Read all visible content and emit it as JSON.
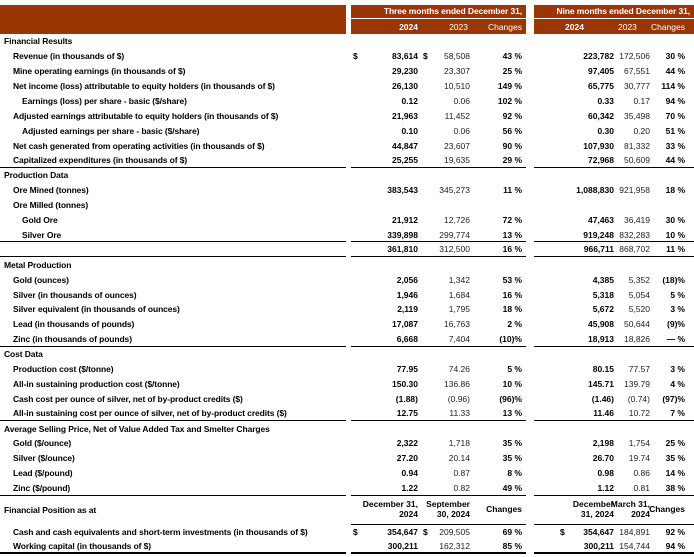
{
  "colors": {
    "header_bg": "#9A3603",
    "header_text": "#FFFFFF",
    "border": "#000000"
  },
  "header": {
    "three_months": {
      "title": "Three months ended December 31,",
      "cols": [
        "2024",
        "2023",
        "Changes"
      ]
    },
    "nine_months": {
      "title": "Nine months ended December 31,",
      "cols": [
        "2024",
        "2023",
        "Changes"
      ]
    }
  },
  "sections": [
    {
      "l": "Financial Results",
      "rows": [
        {
          "l": "Revenue (in thousands of $)",
          "i": 1,
          "d1": "$",
          "v1": "83,614",
          "d2": "$",
          "v2": "58,508",
          "v3": "43 %",
          "v4": "223,782",
          "v5": "172,506",
          "v6": "30 %"
        },
        {
          "l": "Mine operating earnings (in thousands of $)",
          "i": 1,
          "v1": "29,230",
          "v2": "23,307",
          "v3": "25 %",
          "v4": "97,405",
          "v5": "67,551",
          "v6": "44 %"
        },
        {
          "l": "Net income (loss) attributable to equity holders (in thousands of $)",
          "i": 1,
          "v1": "26,130",
          "v2": "10,510",
          "v3": "149 %",
          "v4": "65,775",
          "v5": "30,777",
          "v6": "114 %"
        },
        {
          "l": "Earnings (loss) per share - basic ($/share)",
          "i": 2,
          "v1": "0.12",
          "v2": "0.06",
          "v3": "102 %",
          "v4": "0.33",
          "v5": "0.17",
          "v6": "94 %"
        },
        {
          "l": "Adjusted earnings attributable to equity holders (in thousands of $)",
          "i": 1,
          "v1": "21,963",
          "v2": "11,452",
          "v3": "92 %",
          "v4": "60,342",
          "v5": "35,498",
          "v6": "70 %"
        },
        {
          "l": "Adjusted earnings per share - basic ($/share)",
          "i": 2,
          "v1": "0.10",
          "v2": "0.06",
          "v3": "56 %",
          "v4": "0.30",
          "v5": "0.20",
          "v6": "51 %"
        },
        {
          "l": "Net cash generated from operating activities (in thousands of $)",
          "i": 1,
          "v1": "44,847",
          "v2": "23,607",
          "v3": "90 %",
          "v4": "107,930",
          "v5": "81,332",
          "v6": "33 %"
        },
        {
          "l": "Capitalized expenditures (in thousands of $)",
          "i": 1,
          "v1": "25,255",
          "v2": "19,635",
          "v3": "29 %",
          "v4": "72,968",
          "v5": "50,609",
          "v6": "44 %",
          "b": true
        }
      ]
    },
    {
      "l": "Production Data",
      "rows": [
        {
          "l": "Ore Mined (tonnes)",
          "i": 1,
          "v1": "383,543",
          "v2": "345,273",
          "v3": "11 %",
          "v4": "1,088,830",
          "v5": "921,958",
          "v6": "18 %"
        },
        {
          "l": "Ore Milled (tonnes)",
          "i": 1
        },
        {
          "l": "Gold Ore",
          "i": 2,
          "v1": "21,912",
          "v2": "12,726",
          "v3": "72 %",
          "v4": "47,463",
          "v5": "36,419",
          "v6": "30 %"
        },
        {
          "l": "Silver Ore",
          "i": 2,
          "v1": "339,898",
          "v2": "299,774",
          "v3": "13 %",
          "v4": "919,248",
          "v5": "832,283",
          "v6": "10 %",
          "b": true
        },
        {
          "i": 1,
          "v1": "361,810",
          "v2": "312,500",
          "v3": "16 %",
          "v4": "966,711",
          "v5": "868,702",
          "v6": "11 %",
          "b": true
        }
      ]
    },
    {
      "l": "Metal Production",
      "rows": [
        {
          "l": "Gold (ounces)",
          "i": 1,
          "v1": "2,056",
          "v2": "1,342",
          "v3": "53 %",
          "v4": "4,385",
          "v5": "5,352",
          "v6": "(18)%"
        },
        {
          "l": "Silver (in thousands of ounces)",
          "i": 1,
          "v1": "1,946",
          "v2": "1,684",
          "v3": "16 %",
          "v4": "5,318",
          "v5": "5,054",
          "v6": "5 %"
        },
        {
          "l": "Silver equivalent (in thousands of ounces)",
          "i": 1,
          "v1": "2,119",
          "v2": "1,795",
          "v3": "18 %",
          "v4": "5,672",
          "v5": "5,520",
          "v6": "3 %"
        },
        {
          "l": "Lead (in thousands of pounds)",
          "i": 1,
          "v1": "17,087",
          "v2": "16,763",
          "v3": "2 %",
          "v4": "45,908",
          "v5": "50,644",
          "v6": "(9)%"
        },
        {
          "l": "Zinc (in thousands of pounds)",
          "i": 1,
          "v1": "6,668",
          "v2": "7,404",
          "v3": "(10)%",
          "v4": "18,913",
          "v5": "18,826",
          "v6": "— %",
          "b": true
        }
      ]
    },
    {
      "l": "Cost Data",
      "rows": [
        {
          "l": "Production cost ($/tonne)",
          "i": 1,
          "v1": "77.95",
          "v2": "74.26",
          "v3": "5 %",
          "v4": "80.15",
          "v5": "77.57",
          "v6": "3 %"
        },
        {
          "l": "All-in sustaining production cost ($/tonne)",
          "i": 1,
          "v1": "150.30",
          "v2": "136.86",
          "v3": "10 %",
          "v4": "145.71",
          "v5": "139.79",
          "v6": "4 %"
        },
        {
          "l": "Cash cost per ounce of silver, net of by-product credits ($)",
          "i": 1,
          "v1": "(1.88)",
          "v2": "(0.96)",
          "v3": "(96)%",
          "v4": "(1.46)",
          "v5": "(0.74)",
          "v6": "(97)%"
        },
        {
          "l": "All-in sustaining cost per ounce of silver, net of by-product credits ($)",
          "i": 1,
          "v1": "12.75",
          "v2": "11.33",
          "v3": "13 %",
          "v4": "11.46",
          "v5": "10.72",
          "v6": "7 %",
          "b": true
        }
      ]
    },
    {
      "l": "Average Selling Price, Net of Value Added Tax and Smelter Charges",
      "rows": [
        {
          "l": "Gold ($/ounce)",
          "i": 1,
          "v1": "2,322",
          "v2": "1,718",
          "v3": "35 %",
          "v4": "2,198",
          "v5": "1,754",
          "v6": "25 %"
        },
        {
          "l": "Silver ($/ounce)",
          "i": 1,
          "v1": "27.20",
          "v2": "20.14",
          "v3": "35 %",
          "v4": "26.70",
          "v5": "19.74",
          "v6": "35 %"
        },
        {
          "l": "Lead ($/pound)",
          "i": 1,
          "v1": "0.94",
          "v2": "0.87",
          "v3": "8 %",
          "v4": "0.98",
          "v5": "0.86",
          "v6": "14 %"
        },
        {
          "l": "Zinc ($/pound)",
          "i": 1,
          "v1": "1.22",
          "v2": "0.82",
          "v3": "49 %",
          "v4": "1.12",
          "v5": "0.81",
          "v6": "38 %",
          "b": true
        }
      ]
    }
  ],
  "financial_position": {
    "l": "Financial Position as at",
    "headers": [
      [
        "December 31,",
        "2024"
      ],
      [
        "September",
        "30, 2024"
      ],
      [
        "Changes"
      ],
      [
        "December",
        "31, 2024"
      ],
      [
        "March 31,",
        "2024"
      ],
      [
        "Changes"
      ]
    ],
    "rows": [
      {
        "l": "Cash and cash equivalents and short-term investments (in thousands of $)",
        "i": 1,
        "d1": "$",
        "v1": "354,647",
        "d2": "$",
        "v2": "209,505",
        "v3": "69 %",
        "d4": "$",
        "v4": "354,647",
        "v5": "184,891",
        "v6": "92 %"
      },
      {
        "l": "Working capital (in thousands of $)",
        "i": 1,
        "v1": "300,211",
        "v2": "162,312",
        "v3": "85 %",
        "v4": "300,211",
        "v5": "154,744",
        "v6": "94 %",
        "b": true,
        "thick": true
      }
    ]
  }
}
